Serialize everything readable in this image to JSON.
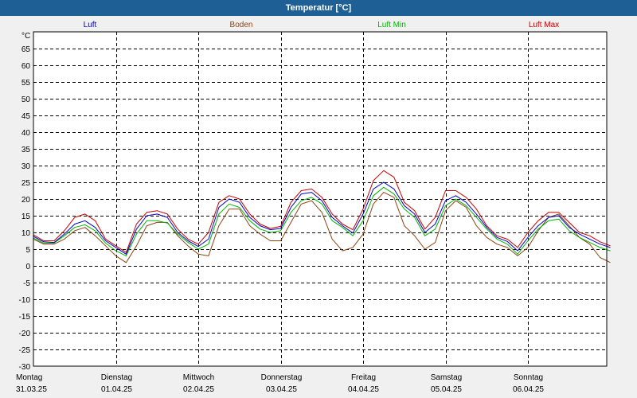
{
  "window": {
    "title": "Temperatur [°C]"
  },
  "chart_data": {
    "type": "line",
    "title": "Temperatur [°C]",
    "ylabel": "°C",
    "ylim": [
      -30,
      70
    ],
    "yticks": [
      65,
      60,
      55,
      50,
      45,
      40,
      35,
      30,
      25,
      20,
      15,
      10,
      5,
      0,
      -5,
      -10,
      -15,
      -20,
      -25,
      -30
    ],
    "grid": true,
    "legend": "top",
    "days": [
      {
        "weekday": "Montag",
        "date": "31.03.25"
      },
      {
        "weekday": "Dienstag",
        "date": "01.04.25"
      },
      {
        "weekday": "Mittwoch",
        "date": "02.04.25"
      },
      {
        "weekday": "Donnerstag",
        "date": "03.04.25"
      },
      {
        "weekday": "Freitag",
        "date": "04.04.25"
      },
      {
        "weekday": "Samstag",
        "date": "05.04.25"
      },
      {
        "weekday": "Sonntag",
        "date": "06.04.25"
      }
    ],
    "x_hours": [
      0,
      3,
      6,
      9,
      12,
      15,
      18,
      21,
      24,
      27,
      30,
      33,
      36,
      39,
      42,
      45,
      48,
      51,
      54,
      57,
      60,
      63,
      66,
      69,
      72,
      75,
      78,
      81,
      84,
      87,
      90,
      93,
      96,
      99,
      102,
      105,
      108,
      111,
      114,
      117,
      120,
      123,
      126,
      129,
      132,
      135,
      138,
      141,
      144,
      147,
      150,
      153,
      156,
      159,
      162,
      165,
      168
    ],
    "series": [
      {
        "name": "Luft",
        "color": "#0000c8",
        "values": [
          8.8,
          7.2,
          7.0,
          9.5,
          12.5,
          13.5,
          11.5,
          7.5,
          5.5,
          3.5,
          11,
          15,
          15.5,
          14.5,
          10,
          7.5,
          5.8,
          8,
          17.5,
          20,
          19,
          14.5,
          12,
          10.8,
          11.2,
          17.5,
          21.5,
          22,
          19.5,
          14.5,
          12,
          9.8,
          15.5,
          23,
          25,
          23,
          18,
          15.5,
          10,
          12.5,
          19.5,
          21,
          19,
          15.5,
          11.5,
          8.5,
          7.3,
          4.5,
          8.5,
          12,
          14.5,
          15,
          11.5,
          9.5,
          8,
          6.5,
          5.5
        ]
      },
      {
        "name": "Boden",
        "color": "#8b4513",
        "values": [
          8,
          6.5,
          6.5,
          8,
          10.5,
          11.5,
          9,
          6,
          3,
          1,
          6,
          12,
          13,
          13,
          9,
          6,
          3.5,
          3,
          12,
          17,
          17,
          12,
          9.5,
          7.5,
          7.5,
          13,
          18.5,
          19.5,
          16,
          8,
          4.5,
          5.5,
          9.5,
          18.5,
          22,
          20.5,
          12,
          9,
          5,
          7,
          16.5,
          19.5,
          17.5,
          12,
          8.5,
          6.5,
          5.5,
          3,
          5.5,
          10.5,
          14.5,
          15.5,
          12,
          8.5,
          6.5,
          2.5,
          1
        ]
      },
      {
        "name": "Luft Min",
        "color": "#00b400",
        "values": [
          8.3,
          6.8,
          6.8,
          9,
          11.5,
          12.3,
          10.5,
          6.8,
          4.5,
          3,
          9.5,
          13.5,
          13.5,
          12.8,
          9.5,
          7,
          5,
          6.5,
          15.5,
          18.5,
          17.5,
          13.5,
          11,
          10,
          10.5,
          16,
          19.5,
          20.5,
          18.5,
          13.5,
          11.5,
          9,
          13.5,
          21,
          23.5,
          21.5,
          17,
          14.5,
          9,
          11,
          18,
          20,
          18,
          14.5,
          11,
          8,
          6.5,
          3.5,
          7.5,
          11,
          13.5,
          14,
          10.5,
          8.5,
          7,
          5.5,
          4.5
        ]
      },
      {
        "name": "Luft Max",
        "color": "#c80000",
        "values": [
          9.3,
          7.5,
          7.5,
          10.5,
          14.5,
          15.5,
          13.5,
          8,
          6,
          4,
          12.5,
          16,
          16.5,
          15.5,
          11,
          8,
          6.5,
          10,
          19,
          21,
          20,
          15.5,
          12.5,
          11.2,
          11.8,
          19,
          22.5,
          23,
          20.5,
          15.5,
          12.5,
          10.8,
          17,
          25.5,
          28.5,
          26.5,
          19,
          16.5,
          11,
          14.5,
          22.5,
          22.5,
          20.5,
          17,
          12,
          9,
          8,
          5.5,
          10,
          13.5,
          16,
          16,
          13,
          10,
          9,
          7.2,
          6
        ]
      }
    ]
  }
}
